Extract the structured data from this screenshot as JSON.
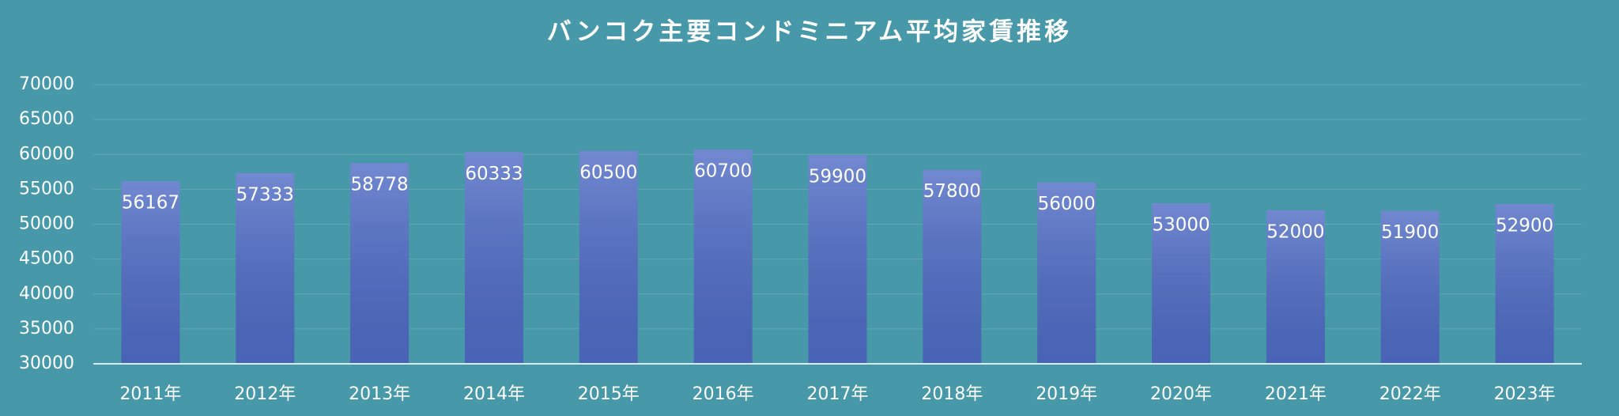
{
  "chart_data": {
    "type": "bar",
    "title": "バンコク主要コンドミニアム平均家賃推移",
    "categories": [
      "2011年",
      "2012年",
      "2013年",
      "2014年",
      "2015年",
      "2016年",
      "2017年",
      "2018年",
      "2019年",
      "2020年",
      "2021年",
      "2022年",
      "2023年"
    ],
    "values": [
      56167,
      57333,
      58778,
      60333,
      60500,
      60700,
      59900,
      57800,
      56000,
      53000,
      52000,
      51900,
      52900
    ],
    "color": "#4f6cc6",
    "ylim": [
      30000,
      70000
    ],
    "yticks": [
      30000,
      35000,
      40000,
      45000,
      50000,
      55000,
      60000,
      65000,
      70000
    ],
    "grid": true
  }
}
